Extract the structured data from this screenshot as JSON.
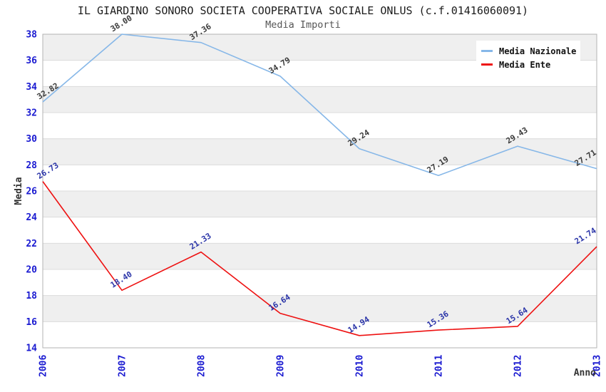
{
  "chart_data": {
    "type": "line",
    "title": "IL GIARDINO SONORO SOCIETA COOPERATIVA SOCIALE ONLUS (c.f.01416060091)",
    "subtitle": "Media Importi",
    "xlabel": "Anno",
    "ylabel": "Media",
    "x_categories": [
      "2006",
      "2007",
      "2008",
      "2009",
      "2010",
      "2011",
      "2012",
      "2013"
    ],
    "y_ticks": [
      "14",
      "16",
      "18",
      "20",
      "22",
      "24",
      "26",
      "28",
      "30",
      "32",
      "34",
      "36",
      "38"
    ],
    "ylim": [
      14,
      38
    ],
    "y_tick_step": 2,
    "grid": "horizontal gridlines with alternating gray/white bands",
    "legend_position": "top-right",
    "series": [
      {
        "name": "Media Nazionale",
        "color": "#86b7e8",
        "label_color": "#3a3a3a",
        "values": [
          32.82,
          38.0,
          37.36,
          34.79,
          29.24,
          27.19,
          29.43,
          27.71
        ],
        "labels": [
          "32.82",
          "38.00",
          "37.36",
          "34.79",
          "29.24",
          "27.19",
          "29.43",
          "27.71"
        ]
      },
      {
        "name": "Media Ente",
        "color": "#ee1111",
        "label_color": "#2a34a8",
        "values": [
          26.73,
          18.4,
          21.33,
          16.64,
          14.94,
          15.36,
          15.64,
          21.74
        ],
        "labels": [
          "26.73",
          "18.40",
          "21.33",
          "16.64",
          "14.94",
          "15.36",
          "15.64",
          "21.74"
        ]
      }
    ]
  },
  "colors": {
    "tick_label": "#1a1ad1",
    "band_gray": "#efefef",
    "grid_line": "#dcdcdc",
    "frame": "#b3b3b3",
    "axis_title": "#333333",
    "subtitle": "#555555",
    "legend_bg": "#ffffff"
  }
}
